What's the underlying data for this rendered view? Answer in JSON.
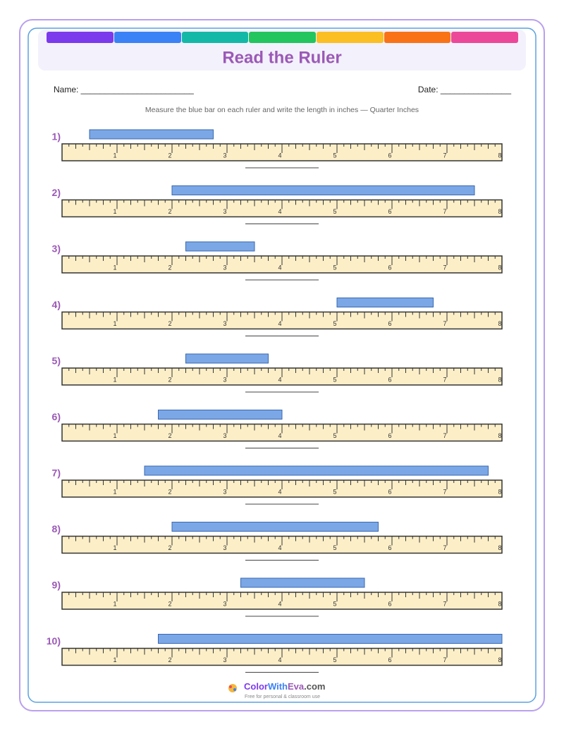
{
  "header": {
    "title": "Read the Ruler"
  },
  "fields": {
    "name": "Name: ________________________",
    "date": "Date: _______________"
  },
  "instructions": "Measure the blue bar on each ruler and write the length in inches — Quarter Inches",
  "ruler_labels": [
    "1",
    "2",
    "3",
    "4",
    "5",
    "6",
    "7",
    "8"
  ],
  "problems": [
    {
      "number": "1)",
      "start": 0.5,
      "end": 2.75
    },
    {
      "number": "2)",
      "start": 2,
      "end": 7.5
    },
    {
      "number": "3)",
      "start": 2.25,
      "end": 3.5
    },
    {
      "number": "4)",
      "start": 5,
      "end": 6.75
    },
    {
      "number": "5)",
      "start": 2.25,
      "end": 3.75
    },
    {
      "number": "6)",
      "start": 1.75,
      "end": 4
    },
    {
      "number": "7)",
      "start": 1.5,
      "end": 7.75
    },
    {
      "number": "8)",
      "start": 2,
      "end": 5.75
    },
    {
      "number": "9)",
      "start": 3.25,
      "end": 5.5
    },
    {
      "number": "10)",
      "start": 1.75,
      "end": 8
    }
  ],
  "footer": {
    "brand": [
      "Color",
      "With",
      "Eva",
      ".com"
    ],
    "tagline": "Free for personal & classroom use"
  }
}
